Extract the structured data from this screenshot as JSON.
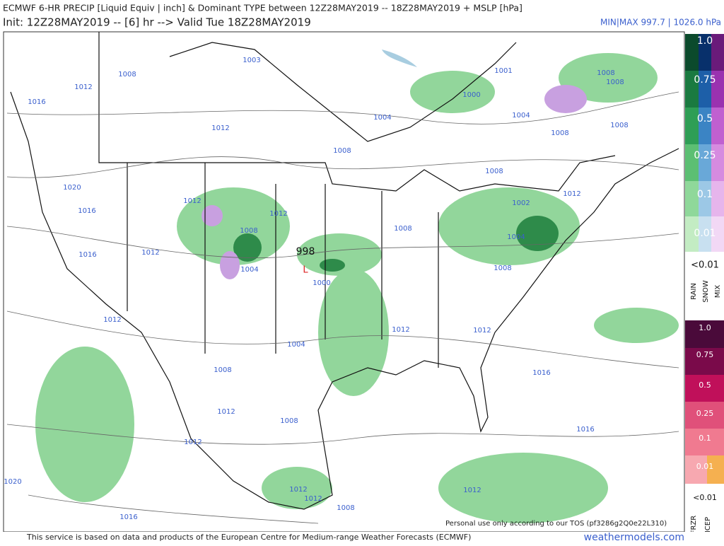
{
  "header": {
    "title": "ECMWF 6-HR PRECIP [Liquid Equiv | inch] & Dominant TYPE between 12Z28MAY2019 -- 18Z28MAY2019 + MSLP [hPa]",
    "subtitle": "Init: 12Z28MAY2019 -- [6] hr --> Valid Tue 18Z28MAY2019",
    "minmax": "MIN|MAX 997.7 | 1026.0 hPa"
  },
  "legend_rain": {
    "levels": [
      "1.0",
      "0.75",
      "0.5",
      "0.25",
      "0.1",
      "0.01"
    ],
    "below": "<0.01",
    "types": [
      "RAIN",
      "SNOW",
      "MIX"
    ]
  },
  "legend_ice": {
    "levels": [
      "1.0",
      "0.75",
      "0.5",
      "0.25",
      "0.1",
      "0.01"
    ],
    "below": "<0.01",
    "types": [
      "FRZR",
      "ICEP"
    ]
  },
  "isobar_labels": [
    "1008",
    "1003",
    "1012",
    "1016",
    "1012",
    "1004",
    "1008",
    "1001",
    "1000",
    "1004",
    "1008",
    "1008",
    "1008",
    "1008",
    "1008",
    "1012",
    "1002",
    "1020",
    "1016",
    "1012",
    "1012",
    "1008",
    "1008",
    "1004",
    "1016",
    "1012",
    "1004",
    "1000",
    "1008",
    "1012",
    "1012",
    "1012",
    "1004",
    "1008",
    "1016",
    "1012",
    "1008",
    "1016",
    "1012",
    "1020",
    "1012",
    "1012",
    "1012",
    "1008",
    "1016"
  ],
  "low_center": "998",
  "footer": {
    "credit": "This service is based on data and products of the European Centre for Medium-range Weather Forecasts (ECMWF)",
    "site": "weathermodels.com",
    "tos": "Personal use only according to our TOS (pf3286g2Q0e22L310)"
  }
}
